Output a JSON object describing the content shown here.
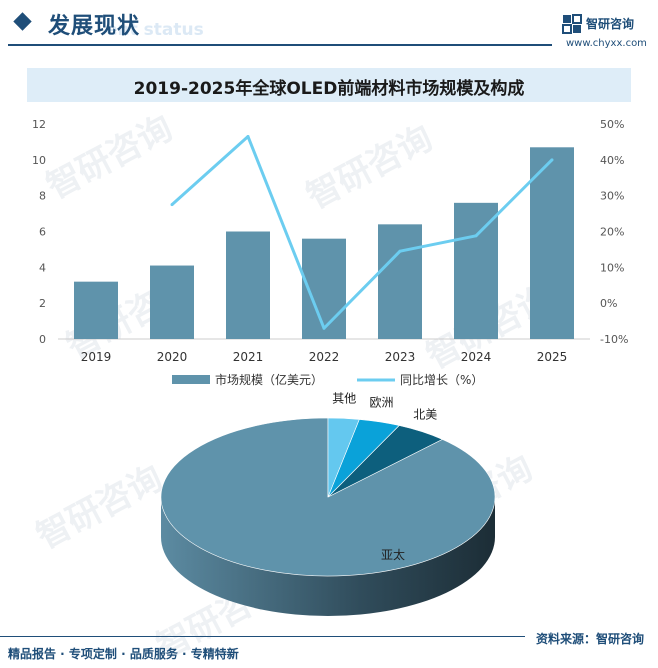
{
  "header": {
    "title": "发展现状",
    "ghost_text": "ent status",
    "brand_name": "智研咨询",
    "brand_url": "www.chyxx.com"
  },
  "watermark": "智研咨询",
  "chart_data": [
    {
      "type": "bar+line",
      "title": "2019-2025年全球OLED前端材料市场规模及构成",
      "categories": [
        "2019",
        "2020",
        "2021",
        "2022",
        "2023",
        "2024",
        "2025"
      ],
      "series": [
        {
          "name": "市场规模（亿美元）",
          "type": "bar",
          "axis": "left",
          "color": "#5f93ab",
          "values": [
            3.2,
            4.1,
            6.0,
            5.6,
            6.4,
            7.6,
            10.7
          ]
        },
        {
          "name": "同比增长（%）",
          "type": "line",
          "axis": "right",
          "color": "#6ccdf0",
          "values": [
            null,
            27.5,
            46.5,
            -7.0,
            14.5,
            18.8,
            40.0
          ]
        }
      ],
      "left_axis": {
        "min": 0,
        "max": 12,
        "ticks": [
          "0",
          "2",
          "4",
          "6",
          "8",
          "10",
          "12"
        ]
      },
      "right_axis": {
        "min": -10,
        "max": 50,
        "ticks": [
          "-10%",
          "0%",
          "10%",
          "20%",
          "30%",
          "40%",
          "50%"
        ]
      },
      "legend_position": "bottom"
    },
    {
      "type": "pie",
      "style": "3d",
      "slices": [
        {
          "label": "亚太",
          "value": 88,
          "color": "#5f93ab"
        },
        {
          "label": "北美",
          "value": 5,
          "color": "#0d5f7d"
        },
        {
          "label": "欧洲",
          "value": 4,
          "color": "#0aa2d9"
        },
        {
          "label": "其他",
          "value": 3,
          "color": "#64c8ef"
        }
      ]
    }
  ],
  "footer": {
    "left": "精品报告 · 专项定制 · 品质服务 · 专精特新",
    "right": "资料来源：智研咨询"
  }
}
